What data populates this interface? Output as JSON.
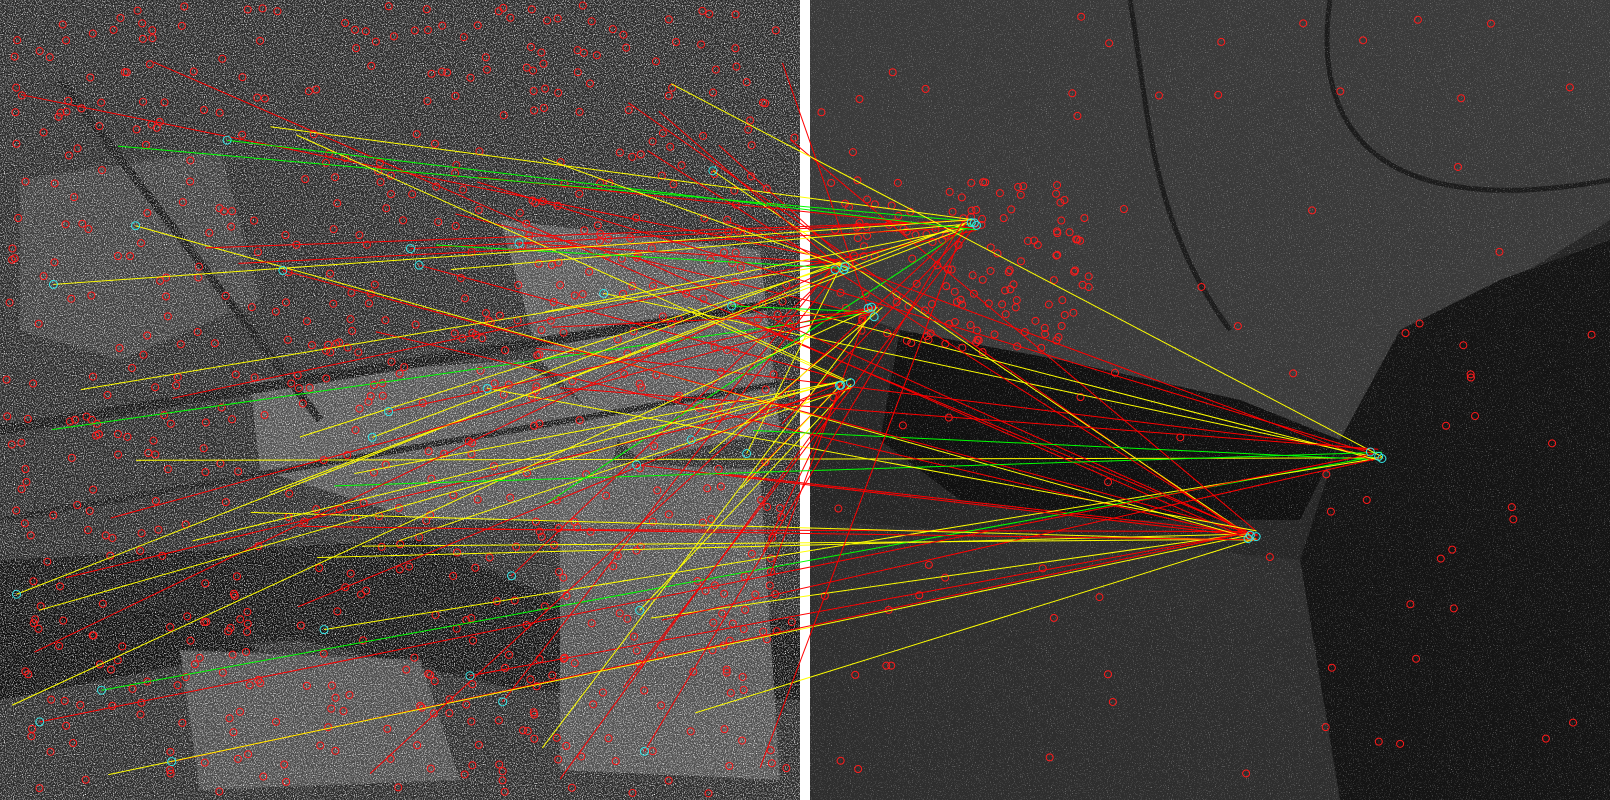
{
  "figure": {
    "left_image": {
      "kind": "sar-urban-scene"
    },
    "right_image": {
      "kind": "sar-coastal-scene"
    },
    "separator_color": "#ffffff"
  },
  "legend_semantics": {
    "keypoint_color": "#ff1a1a",
    "matched_keypoint_color": "#33e6e6",
    "match_line_colors": [
      "#ff0000",
      "#ffff00",
      "#00ff00"
    ]
  }
}
